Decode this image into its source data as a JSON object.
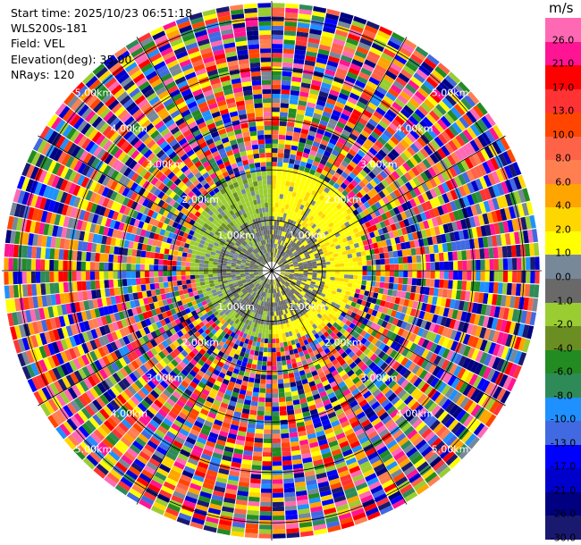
{
  "meta": {
    "start_time": "Start time: 2025/10/23 06:51:18",
    "instrument": "WLS200s-181",
    "field": "Field: VEL",
    "elevation": "Elevation(deg): 35.00",
    "nrays": "NRays: 120"
  },
  "chart_data": {
    "type": "heatmap",
    "projection": "polar-ppi",
    "title": "",
    "nrays": 120,
    "range_unit": "km",
    "range_rings": [
      {
        "value": 1,
        "label": "1.00km"
      },
      {
        "value": 2,
        "label": "2.00km"
      },
      {
        "value": 3,
        "label": "3.00km"
      },
      {
        "value": 4,
        "label": "4.00km"
      },
      {
        "value": 5,
        "label": "5.00km"
      }
    ],
    "rmax": 5.35,
    "grid": true,
    "colorbar": {
      "unit": "m/s",
      "placement": "right",
      "levels": [
        {
          "label": "26.0",
          "color": "#ff69b4"
        },
        {
          "label": "21.0",
          "color": "#ff1493"
        },
        {
          "label": "17.0",
          "color": "#ff0000"
        },
        {
          "label": "13.0",
          "color": "#ff3333"
        },
        {
          "label": "10.0",
          "color": "#ff4500"
        },
        {
          "label": "8.0",
          "color": "#ff6347"
        },
        {
          "label": "6.0",
          "color": "#ff7f50"
        },
        {
          "label": "4.0",
          "color": "#ffa500"
        },
        {
          "label": "2.0",
          "color": "#ffd700"
        },
        {
          "label": "1.0",
          "color": "#ffff00"
        },
        {
          "label": "0.0",
          "color": "#778899"
        },
        {
          "label": "-1.0",
          "color": "#696969"
        },
        {
          "label": "-2.0",
          "color": "#9acd32"
        },
        {
          "label": "-4.0",
          "color": "#6b8e23"
        },
        {
          "label": "-6.0",
          "color": "#228b22"
        },
        {
          "label": "-8.0",
          "color": "#2e8b57"
        },
        {
          "label": "-10.0",
          "color": "#1e90ff"
        },
        {
          "label": "-13.0",
          "color": "#4169e1"
        },
        {
          "label": "-17.0",
          "color": "#0000ff"
        },
        {
          "label": "-21.0",
          "color": "#0000cd"
        },
        {
          "label": "-26.0",
          "color": "#000080"
        },
        {
          "label": "-30.0",
          "color": "#191970"
        }
      ]
    }
  }
}
